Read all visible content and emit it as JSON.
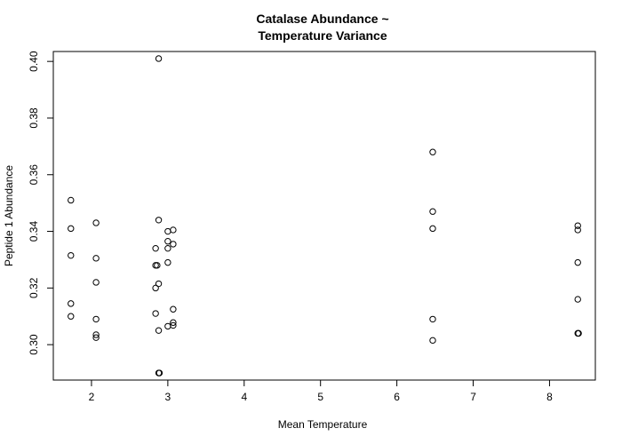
{
  "chart_data": {
    "type": "scatter",
    "title_lines": [
      "Catalase Abundance ~",
      "Temperature Variance"
    ],
    "xlabel": "Mean Temperature",
    "ylabel": "Peptide 1 Abundance",
    "xlim": [
      1.5,
      8.6
    ],
    "ylim": [
      0.2875,
      0.4035
    ],
    "x_ticks": [
      2,
      3,
      4,
      5,
      6,
      7,
      8
    ],
    "x_tick_labels": [
      "2",
      "3",
      "4",
      "5",
      "6",
      "7",
      "8"
    ],
    "y_ticks": [
      0.3,
      0.32,
      0.34,
      0.36,
      0.38,
      0.4
    ],
    "y_tick_labels": [
      "0.30",
      "0.32",
      "0.34",
      "0.36",
      "0.38",
      "0.40"
    ],
    "grid": false,
    "legend": "none",
    "marker": "open-circle",
    "points": [
      {
        "x": 1.73,
        "y": 0.351
      },
      {
        "x": 1.73,
        "y": 0.341
      },
      {
        "x": 1.73,
        "y": 0.3315
      },
      {
        "x": 1.73,
        "y": 0.3145
      },
      {
        "x": 1.73,
        "y": 0.31
      },
      {
        "x": 2.06,
        "y": 0.343
      },
      {
        "x": 2.06,
        "y": 0.3305
      },
      {
        "x": 2.06,
        "y": 0.322
      },
      {
        "x": 2.06,
        "y": 0.309
      },
      {
        "x": 2.06,
        "y": 0.3035
      },
      {
        "x": 2.06,
        "y": 0.3025
      },
      {
        "x": 2.88,
        "y": 0.401
      },
      {
        "x": 2.88,
        "y": 0.344
      },
      {
        "x": 2.84,
        "y": 0.334
      },
      {
        "x": 2.84,
        "y": 0.328
      },
      {
        "x": 2.86,
        "y": 0.328
      },
      {
        "x": 2.88,
        "y": 0.3215
      },
      {
        "x": 2.84,
        "y": 0.32
      },
      {
        "x": 2.84,
        "y": 0.311
      },
      {
        "x": 2.88,
        "y": 0.305
      },
      {
        "x": 2.88,
        "y": 0.29
      },
      {
        "x": 2.89,
        "y": 0.29
      },
      {
        "x": 3.0,
        "y": 0.34
      },
      {
        "x": 3.0,
        "y": 0.3365
      },
      {
        "x": 3.0,
        "y": 0.334
      },
      {
        "x": 3.0,
        "y": 0.329
      },
      {
        "x": 3.0,
        "y": 0.3065
      },
      {
        "x": 3.07,
        "y": 0.3405
      },
      {
        "x": 3.07,
        "y": 0.3355
      },
      {
        "x": 3.07,
        "y": 0.3125
      },
      {
        "x": 3.07,
        "y": 0.3078
      },
      {
        "x": 3.07,
        "y": 0.3068
      },
      {
        "x": 6.47,
        "y": 0.368
      },
      {
        "x": 6.47,
        "y": 0.347
      },
      {
        "x": 6.47,
        "y": 0.341
      },
      {
        "x": 6.47,
        "y": 0.309
      },
      {
        "x": 6.47,
        "y": 0.3015
      },
      {
        "x": 8.37,
        "y": 0.342
      },
      {
        "x": 8.37,
        "y": 0.3405
      },
      {
        "x": 8.37,
        "y": 0.329
      },
      {
        "x": 8.37,
        "y": 0.316
      },
      {
        "x": 8.37,
        "y": 0.304
      },
      {
        "x": 8.38,
        "y": 0.304
      }
    ]
  }
}
